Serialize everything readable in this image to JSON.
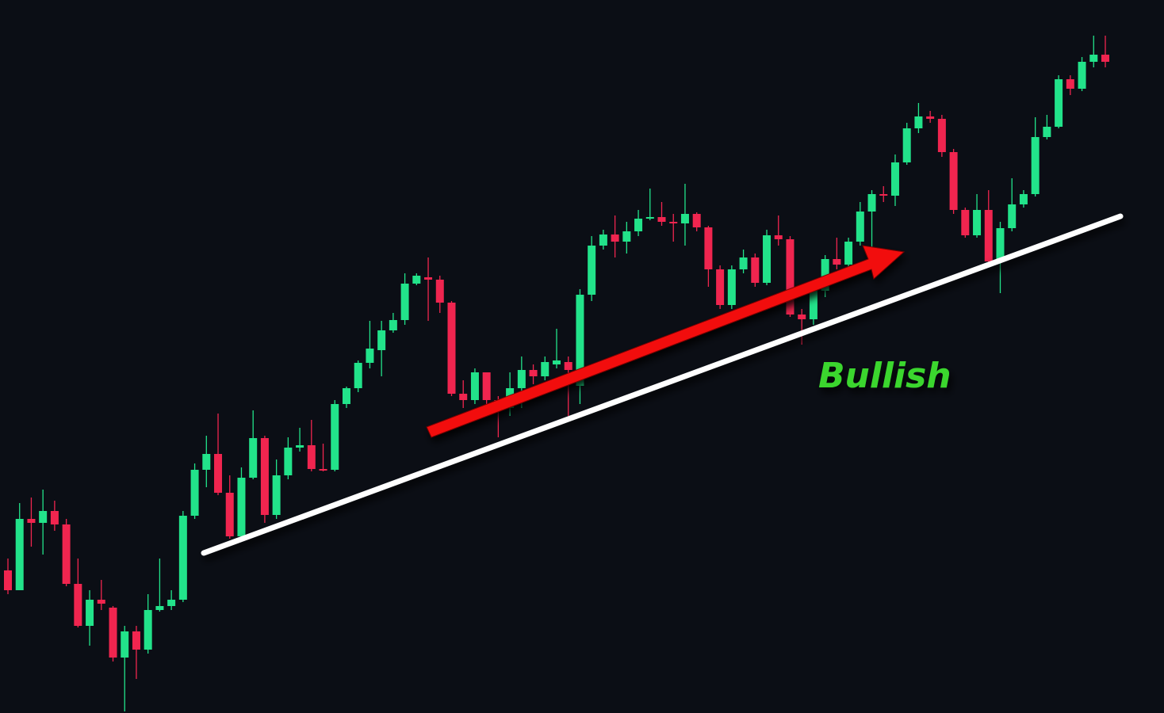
{
  "chart_data": {
    "type": "candlestick",
    "annotation": "Bullish",
    "annotation_color": "#3bd62f",
    "up_color": "#22e38a",
    "down_color": "#f0254f",
    "ylim": [
      0,
      900
    ],
    "open": [
      180,
      155,
      245,
      240,
      255,
      238,
      163,
      110,
      143,
      133,
      70,
      103,
      80,
      130,
      135,
      143,
      249,
      307,
      327,
      278,
      223,
      297,
      347,
      250,
      300,
      335,
      338,
      308,
      307,
      390,
      410,
      442,
      458,
      483,
      496,
      542,
      550,
      547,
      518,
      403,
      395,
      430,
      395,
      385,
      410,
      433,
      425,
      440,
      443,
      413,
      528,
      590,
      604,
      595,
      608,
      624,
      626,
      620,
      618,
      630,
      613,
      560,
      515,
      560,
      575,
      543,
      603,
      598,
      503,
      497,
      533,
      573,
      566,
      595,
      633,
      655,
      653,
      695,
      738,
      753,
      750,
      708,
      635,
      603,
      635,
      570,
      612,
      642,
      655,
      727,
      740,
      800,
      788,
      822,
      831
    ],
    "high": [
      195,
      265,
      272,
      282,
      268,
      245,
      195,
      155,
      168,
      135,
      110,
      110,
      150,
      195,
      155,
      255,
      315,
      350,
      378,
      300,
      310,
      382,
      350,
      320,
      348,
      360,
      370,
      340,
      395,
      412,
      445,
      495,
      495,
      505,
      555,
      555,
      575,
      552,
      520,
      420,
      435,
      430,
      400,
      430,
      450,
      440,
      450,
      485,
      450,
      535,
      602,
      610,
      628,
      620,
      635,
      662,
      645,
      630,
      668,
      632,
      615,
      565,
      565,
      585,
      580,
      610,
      628,
      602,
      510,
      540,
      578,
      600,
      600,
      645,
      660,
      665,
      705,
      745,
      770,
      760,
      755,
      712,
      638,
      655,
      660,
      620,
      675,
      660,
      752,
      755,
      805,
      805,
      828,
      855,
      855
    ],
    "low": [
      150,
      155,
      210,
      200,
      230,
      160,
      108,
      85,
      130,
      65,
      2,
      43,
      75,
      128,
      130,
      140,
      245,
      285,
      275,
      220,
      220,
      295,
      240,
      245,
      295,
      330,
      305,
      305,
      305,
      385,
      405,
      435,
      425,
      480,
      490,
      540,
      495,
      505,
      400,
      385,
      390,
      390,
      348,
      375,
      385,
      415,
      420,
      435,
      375,
      390,
      520,
      585,
      575,
      580,
      602,
      622,
      615,
      595,
      590,
      608,
      538,
      510,
      510,
      555,
      538,
      540,
      590,
      500,
      465,
      490,
      525,
      560,
      560,
      590,
      585,
      645,
      640,
      692,
      732,
      745,
      702,
      630,
      600,
      600,
      565,
      530,
      608,
      638,
      652,
      724,
      738,
      780,
      785,
      815,
      815
    ],
    "close": [
      155,
      245,
      240,
      255,
      238,
      163,
      110,
      143,
      138,
      70,
      103,
      80,
      130,
      135,
      143,
      249,
      307,
      327,
      278,
      223,
      297,
      347,
      250,
      300,
      335,
      338,
      308,
      307,
      390,
      410,
      442,
      460,
      483,
      496,
      542,
      552,
      547,
      518,
      403,
      395,
      430,
      395,
      385,
      410,
      433,
      425,
      443,
      445,
      433,
      528,
      590,
      604,
      595,
      608,
      624,
      626,
      620,
      618,
      630,
      613,
      560,
      515,
      560,
      575,
      543,
      603,
      598,
      503,
      497,
      533,
      573,
      566,
      595,
      633,
      655,
      653,
      695,
      738,
      753,
      750,
      708,
      635,
      603,
      635,
      570,
      612,
      642,
      655,
      727,
      740,
      800,
      788,
      822,
      831,
      822
    ]
  }
}
